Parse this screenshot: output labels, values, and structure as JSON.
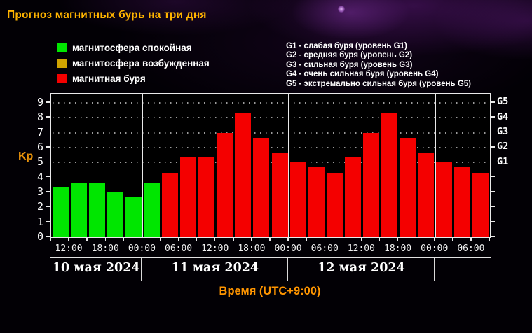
{
  "title": "Прогноз магнитных бурь на три дня",
  "legend": {
    "items": [
      {
        "name": "quiet",
        "label": "магнитосфера спокойная",
        "color": "#00e600"
      },
      {
        "name": "unsettled",
        "label": "магнитосфера возбужденная",
        "color": "#cfa300"
      },
      {
        "name": "storm",
        "label": "магнитная буря",
        "color": "#f40000"
      }
    ]
  },
  "storm_scale_legend": [
    "G1 - слабая буря (уровень G1)",
    "G2 - средняя буря (уровень G2)",
    "G3 - сильная буря (уровень G3)",
    "G4 - очень сильная буря (уровень G4)",
    "G5 - экстремально сильная буря (уровень G5)"
  ],
  "chart_data": {
    "type": "bar",
    "ylabel": "Kp",
    "xlabel": "Время (UTC+9:00)",
    "ylim": [
      0,
      9.6
    ],
    "yticks": [
      0,
      1,
      2,
      3,
      4,
      5,
      6,
      7,
      8,
      9
    ],
    "dotted_grid_kp": [
      5,
      6,
      7,
      8,
      9
    ],
    "right_axis_labels": [
      {
        "label": "G1",
        "kp": 5
      },
      {
        "label": "G2",
        "kp": 6
      },
      {
        "label": "G3",
        "kp": 7
      },
      {
        "label": "G4",
        "kp": 8
      },
      {
        "label": "G5",
        "kp": 9
      }
    ],
    "interval_hours": 3,
    "bars": [
      {
        "kp": 3.33,
        "state": "quiet"
      },
      {
        "kp": 3.67,
        "state": "quiet"
      },
      {
        "kp": 3.67,
        "state": "quiet"
      },
      {
        "kp": 3.0,
        "state": "quiet"
      },
      {
        "kp": 2.67,
        "state": "quiet"
      },
      {
        "kp": 3.67,
        "state": "quiet"
      },
      {
        "kp": 4.33,
        "state": "storm"
      },
      {
        "kp": 5.33,
        "state": "storm"
      },
      {
        "kp": 5.33,
        "state": "storm"
      },
      {
        "kp": 7.0,
        "state": "storm"
      },
      {
        "kp": 8.33,
        "state": "storm"
      },
      {
        "kp": 6.67,
        "state": "storm"
      },
      {
        "kp": 5.67,
        "state": "storm"
      },
      {
        "kp": 5.0,
        "state": "storm"
      },
      {
        "kp": 4.67,
        "state": "storm"
      },
      {
        "kp": 4.33,
        "state": "storm"
      },
      {
        "kp": 5.33,
        "state": "storm"
      },
      {
        "kp": 7.0,
        "state": "storm"
      },
      {
        "kp": 8.33,
        "state": "storm"
      },
      {
        "kp": 6.67,
        "state": "storm"
      },
      {
        "kp": 5.67,
        "state": "storm"
      },
      {
        "kp": 5.0,
        "state": "storm"
      },
      {
        "kp": 4.67,
        "state": "storm"
      },
      {
        "kp": 4.33,
        "state": "storm"
      }
    ],
    "x_ticks": [
      {
        "boundary": 1,
        "label": "12:00"
      },
      {
        "boundary": 3,
        "label": "18:00"
      },
      {
        "boundary": 5,
        "label": "00:00"
      },
      {
        "boundary": 7,
        "label": "06:00"
      },
      {
        "boundary": 9,
        "label": "12:00"
      },
      {
        "boundary": 11,
        "label": "18:00"
      },
      {
        "boundary": 13,
        "label": "00:00"
      },
      {
        "boundary": 15,
        "label": "06:00"
      },
      {
        "boundary": 17,
        "label": "12:00"
      },
      {
        "boundary": 19,
        "label": "18:00"
      },
      {
        "boundary": 21,
        "label": "00:00"
      },
      {
        "boundary": 23,
        "label": "06:00"
      }
    ],
    "day_bands": [
      {
        "label": "10 мая 2024",
        "from": 0,
        "to": 5
      },
      {
        "label": "11 мая 2024",
        "from": 5,
        "to": 13
      },
      {
        "label": "12 мая 2024",
        "from": 13,
        "to": 21
      }
    ],
    "day_boundaries": [
      5,
      13,
      21
    ]
  }
}
